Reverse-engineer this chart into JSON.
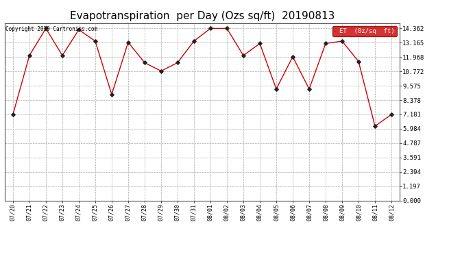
{
  "title": "Evapotranspiration  per Day (Ozs sq/ft)  20190813",
  "copyright": "Copyright 2019 Cartronics.com",
  "legend_label": "ET  (0z/sq  ft)",
  "x_labels": [
    "07/20",
    "07/21",
    "07/22",
    "07/23",
    "07/24",
    "07/25",
    "07/26",
    "07/27",
    "07/28",
    "07/29",
    "07/30",
    "07/31",
    "08/01",
    "08/02",
    "08/03",
    "08/04",
    "08/05",
    "08/06",
    "08/07",
    "08/08",
    "08/09",
    "08/10",
    "08/11",
    "08/12"
  ],
  "y_values": [
    7.18,
    12.1,
    14.36,
    12.1,
    14.25,
    13.3,
    8.85,
    13.2,
    11.5,
    10.8,
    11.5,
    13.3,
    14.36,
    14.36,
    12.1,
    13.1,
    9.3,
    12.0,
    9.3,
    13.1,
    13.3,
    11.6,
    6.2,
    7.18
  ],
  "line_color": "#cc0000",
  "marker_color": "#222222",
  "bg_color": "#ffffff",
  "grid_color": "#aaaaaa",
  "yticks": [
    0.0,
    1.197,
    2.394,
    3.591,
    4.787,
    5.984,
    7.181,
    8.378,
    9.575,
    10.772,
    11.968,
    13.165,
    14.362
  ],
  "ylim": [
    0.0,
    14.8
  ],
  "title_fontsize": 11,
  "legend_bg": "#cc0000",
  "legend_text_color": "#ffffff"
}
